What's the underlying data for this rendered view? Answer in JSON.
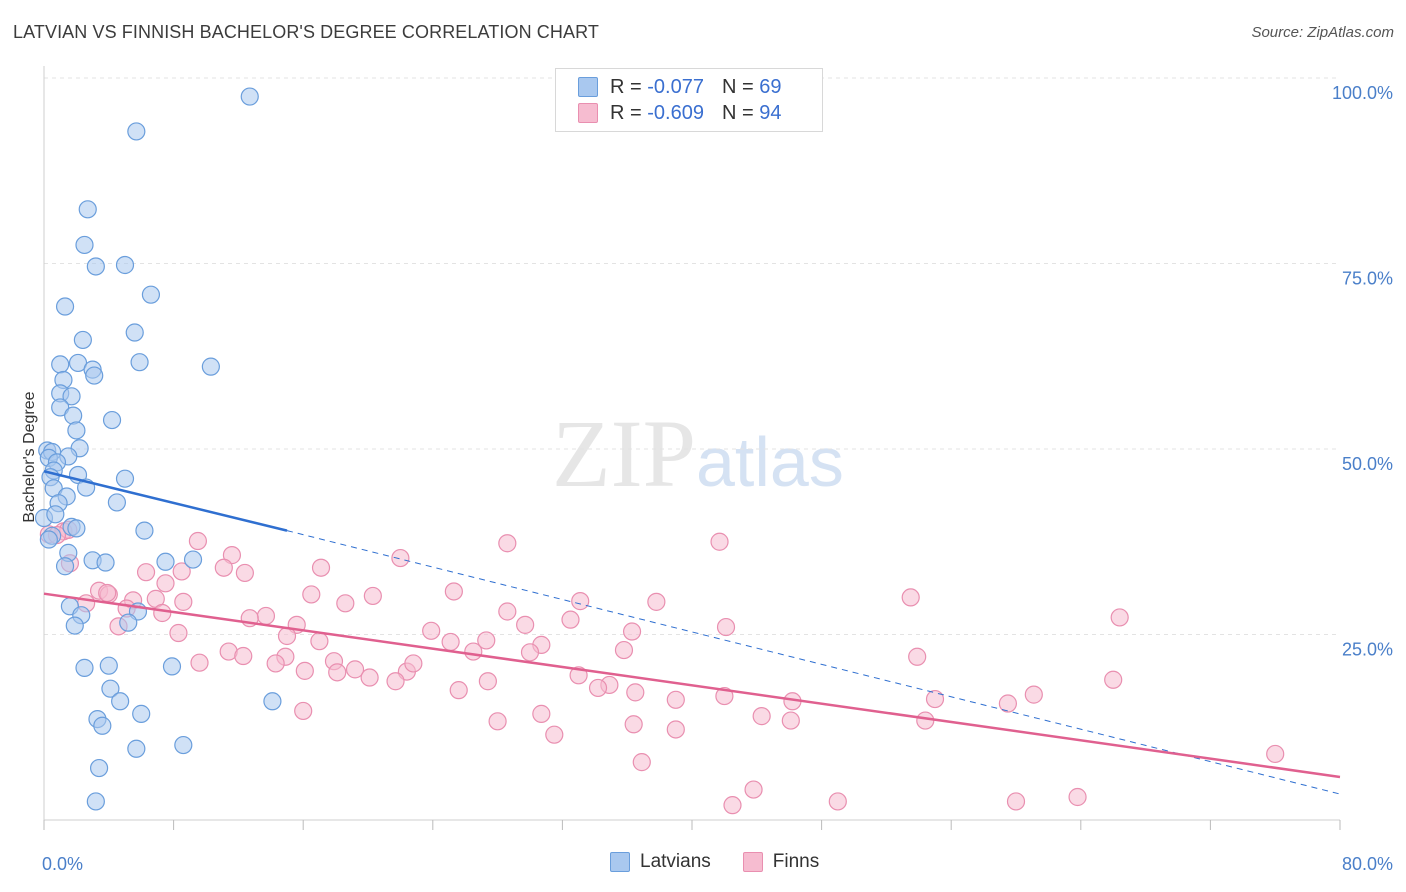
{
  "header": {
    "title": "LATVIAN VS FINNISH BACHELOR'S DEGREE CORRELATION CHART",
    "source": "Source: ZipAtlas.com"
  },
  "watermark": {
    "zip": "ZIP",
    "atlas": "atlas"
  },
  "legend": {
    "rows": [
      {
        "r_label": "R = ",
        "r_value": "-0.077",
        "n_label": "N = ",
        "n_value": "69"
      },
      {
        "r_label": "R = ",
        "r_value": "-0.609",
        "n_label": "N = ",
        "n_value": "94"
      }
    ]
  },
  "bottom_legend": {
    "latvians": "Latvians",
    "finns": "Finns"
  },
  "colors": {
    "latvian_fill": "#a9c8ef",
    "latvian_stroke": "#6a9edc",
    "latvian_line": "#2f6fd0",
    "finn_fill": "#f6bcd0",
    "finn_stroke": "#e98fb0",
    "finn_line": "#e0608f",
    "grid": "#e3e3e3",
    "tick_text": "#4a7fc9"
  },
  "chart_data": {
    "type": "scatter",
    "title": "LATVIAN VS FINNISH BACHELOR'S DEGREE CORRELATION CHART",
    "xlabel": "",
    "ylabel": "Bachelor's Degree",
    "xlim": [
      0,
      80
    ],
    "ylim": [
      0,
      100
    ],
    "x_tick_labels": [
      "0.0%",
      "80.0%"
    ],
    "y_tick_labels": [
      "100.0%",
      "75.0%",
      "50.0%",
      "25.0%"
    ],
    "y_ticks": [
      100,
      75,
      50,
      25
    ],
    "grid": true,
    "legend_position": "top-center",
    "series": [
      {
        "name": "Latvians",
        "r": -0.077,
        "n": 69,
        "trend": {
          "x": [
            0,
            15
          ],
          "y": [
            47.0,
            39.0
          ],
          "dashed_extension_to_x": 80,
          "dashed_end_y": 3.5
        },
        "points": [
          [
            12.7,
            97.5
          ],
          [
            5.7,
            92.8
          ],
          [
            2.7,
            82.3
          ],
          [
            2.5,
            77.5
          ],
          [
            3.2,
            74.6
          ],
          [
            5.0,
            74.8
          ],
          [
            6.6,
            70.8
          ],
          [
            1.3,
            69.2
          ],
          [
            5.6,
            65.7
          ],
          [
            2.4,
            64.7
          ],
          [
            5.9,
            61.7
          ],
          [
            1.0,
            61.4
          ],
          [
            2.1,
            61.6
          ],
          [
            10.3,
            61.1
          ],
          [
            3.0,
            60.7
          ],
          [
            3.1,
            59.9
          ],
          [
            1.2,
            59.3
          ],
          [
            1.0,
            57.5
          ],
          [
            1.7,
            57.1
          ],
          [
            1.0,
            55.6
          ],
          [
            1.8,
            54.5
          ],
          [
            4.2,
            53.9
          ],
          [
            2.0,
            52.5
          ],
          [
            2.2,
            50.1
          ],
          [
            0.2,
            49.8
          ],
          [
            0.5,
            49.6
          ],
          [
            1.5,
            49.0
          ],
          [
            0.3,
            48.8
          ],
          [
            0.8,
            48.2
          ],
          [
            0.6,
            47.1
          ],
          [
            2.1,
            46.5
          ],
          [
            0.4,
            46.2
          ],
          [
            5.0,
            46.0
          ],
          [
            2.6,
            44.8
          ],
          [
            0.6,
            44.7
          ],
          [
            1.4,
            43.6
          ],
          [
            4.5,
            42.8
          ],
          [
            0.9,
            42.7
          ],
          [
            1.7,
            39.5
          ],
          [
            2.0,
            39.3
          ],
          [
            6.2,
            39.0
          ],
          [
            0.5,
            38.3
          ],
          [
            0.3,
            37.8
          ],
          [
            1.5,
            36.0
          ],
          [
            3.0,
            35.0
          ],
          [
            3.8,
            34.7
          ],
          [
            7.5,
            34.8
          ],
          [
            9.2,
            35.1
          ],
          [
            1.3,
            34.2
          ],
          [
            1.6,
            28.8
          ],
          [
            5.8,
            28.1
          ],
          [
            2.3,
            27.6
          ],
          [
            5.2,
            26.6
          ],
          [
            1.9,
            26.2
          ],
          [
            7.9,
            20.7
          ],
          [
            2.5,
            20.5
          ],
          [
            4.0,
            20.8
          ],
          [
            4.1,
            17.7
          ],
          [
            4.7,
            16.0
          ],
          [
            6.0,
            14.3
          ],
          [
            3.3,
            13.6
          ],
          [
            3.6,
            12.7
          ],
          [
            8.6,
            10.1
          ],
          [
            5.7,
            9.6
          ],
          [
            14.1,
            16.0
          ],
          [
            3.4,
            7.0
          ],
          [
            3.2,
            2.5
          ],
          [
            0.0,
            40.7
          ],
          [
            0.7,
            41.2
          ]
        ]
      },
      {
        "name": "Finns",
        "r": -0.609,
        "n": 94,
        "trend": {
          "x": [
            0,
            80
          ],
          "y": [
            30.5,
            5.8
          ]
        },
        "points": [
          [
            0.3,
            38.5
          ],
          [
            1.2,
            38.9
          ],
          [
            1.5,
            39.1
          ],
          [
            0.8,
            38.4
          ],
          [
            1.6,
            34.6
          ],
          [
            9.5,
            37.6
          ],
          [
            11.6,
            35.7
          ],
          [
            22.0,
            35.3
          ],
          [
            28.6,
            37.3
          ],
          [
            41.7,
            37.5
          ],
          [
            8.5,
            33.5
          ],
          [
            6.3,
            33.4
          ],
          [
            7.5,
            31.9
          ],
          [
            11.1,
            34.0
          ],
          [
            3.4,
            30.9
          ],
          [
            4.0,
            30.4
          ],
          [
            5.5,
            29.6
          ],
          [
            6.9,
            29.8
          ],
          [
            8.6,
            29.4
          ],
          [
            3.9,
            30.6
          ],
          [
            12.4,
            33.3
          ],
          [
            17.1,
            34.0
          ],
          [
            20.3,
            30.2
          ],
          [
            33.1,
            29.5
          ],
          [
            37.8,
            29.4
          ],
          [
            53.5,
            30.0
          ],
          [
            5.1,
            28.5
          ],
          [
            2.6,
            29.2
          ],
          [
            7.3,
            27.9
          ],
          [
            13.7,
            27.5
          ],
          [
            12.7,
            27.2
          ],
          [
            16.5,
            30.4
          ],
          [
            18.6,
            29.2
          ],
          [
            25.3,
            30.8
          ],
          [
            28.6,
            28.1
          ],
          [
            15.6,
            26.3
          ],
          [
            23.9,
            25.5
          ],
          [
            29.7,
            26.3
          ],
          [
            32.5,
            27.0
          ],
          [
            36.3,
            25.4
          ],
          [
            42.1,
            26.0
          ],
          [
            66.4,
            27.3
          ],
          [
            4.6,
            26.1
          ],
          [
            8.3,
            25.2
          ],
          [
            15.0,
            24.8
          ],
          [
            17.0,
            24.1
          ],
          [
            25.1,
            24.0
          ],
          [
            27.3,
            24.2
          ],
          [
            30.7,
            23.6
          ],
          [
            35.8,
            22.9
          ],
          [
            11.4,
            22.7
          ],
          [
            12.3,
            22.1
          ],
          [
            14.9,
            22.0
          ],
          [
            17.9,
            21.4
          ],
          [
            19.2,
            20.3
          ],
          [
            22.4,
            20.0
          ],
          [
            22.8,
            21.1
          ],
          [
            26.5,
            22.7
          ],
          [
            30.0,
            22.6
          ],
          [
            9.6,
            21.2
          ],
          [
            14.3,
            21.1
          ],
          [
            16.1,
            20.1
          ],
          [
            18.1,
            19.9
          ],
          [
            20.1,
            19.2
          ],
          [
            21.7,
            18.7
          ],
          [
            27.4,
            18.7
          ],
          [
            33.0,
            19.5
          ],
          [
            34.9,
            18.2
          ],
          [
            53.9,
            22.0
          ],
          [
            66.0,
            18.9
          ],
          [
            25.6,
            17.5
          ],
          [
            34.2,
            17.8
          ],
          [
            36.5,
            17.2
          ],
          [
            39.0,
            16.2
          ],
          [
            42.0,
            16.7
          ],
          [
            46.2,
            16.0
          ],
          [
            55.0,
            16.3
          ],
          [
            59.5,
            15.7
          ],
          [
            61.1,
            16.9
          ],
          [
            16.0,
            14.7
          ],
          [
            30.7,
            14.3
          ],
          [
            28.0,
            13.3
          ],
          [
            36.4,
            12.9
          ],
          [
            39.0,
            12.2
          ],
          [
            44.3,
            14.0
          ],
          [
            46.1,
            13.4
          ],
          [
            54.4,
            13.4
          ],
          [
            31.5,
            11.5
          ],
          [
            36.9,
            7.8
          ],
          [
            43.8,
            4.1
          ],
          [
            76.0,
            8.9
          ],
          [
            42.5,
            2.0
          ],
          [
            49.0,
            2.5
          ],
          [
            60.0,
            2.5
          ],
          [
            63.8,
            3.1
          ]
        ]
      }
    ]
  }
}
